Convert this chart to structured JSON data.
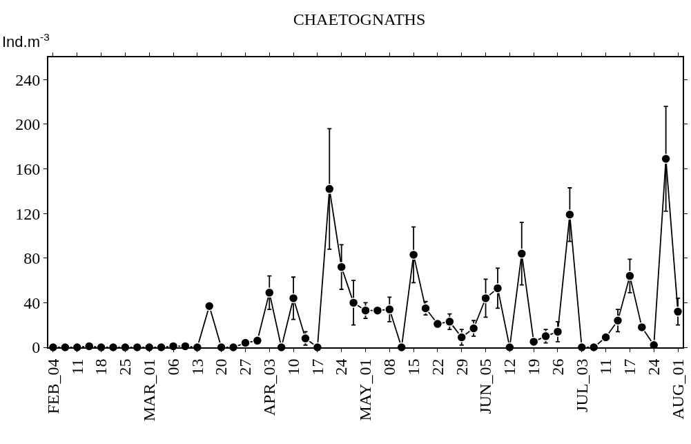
{
  "chart_data": {
    "type": "line",
    "title": "CHAETOGNATHS",
    "ylabel": "Ind.m$^{-3}$",
    "categories": [
      "FEB_04",
      null,
      "11",
      null,
      "18",
      null,
      "25",
      null,
      "MAR_01",
      null,
      "06",
      null,
      "13",
      null,
      "20",
      null,
      "27",
      null,
      "APR_03",
      null,
      "10",
      null,
      "17",
      null,
      "24",
      null,
      "MAY_01",
      null,
      "08",
      null,
      "15",
      null,
      "22",
      null,
      "29",
      null,
      "JUN_05",
      null,
      "12",
      null,
      "19",
      null,
      "26",
      null,
      "JUL_03",
      null,
      "11",
      null,
      "17",
      null,
      "24",
      null,
      "AUG_01"
    ],
    "series": [
      {
        "color": "#000000",
        "values": [
          0,
          0,
          0,
          1,
          0,
          0,
          0,
          0,
          0,
          0,
          1,
          1,
          0,
          37,
          0,
          0,
          4,
          6,
          49,
          0,
          44,
          8,
          0,
          142,
          72,
          40,
          33,
          33,
          34,
          0,
          83,
          35,
          21,
          23,
          9,
          17,
          44,
          53,
          0,
          84,
          5,
          10,
          14,
          119,
          0,
          0,
          9,
          24,
          64,
          18,
          2,
          169,
          32
        ],
        "errors": [
          null,
          null,
          null,
          null,
          null,
          null,
          null,
          null,
          null,
          null,
          null,
          null,
          null,
          null,
          null,
          null,
          null,
          null,
          15,
          null,
          19,
          6,
          null,
          54,
          20,
          20,
          7,
          null,
          11,
          null,
          25,
          6,
          null,
          7,
          7,
          7,
          17,
          18,
          null,
          28,
          null,
          6,
          9,
          24,
          null,
          null,
          null,
          10,
          15,
          null,
          null,
          47,
          12
        ]
      }
    ],
    "ylim": [
      0,
      260
    ],
    "yticks": [
      0,
      40,
      80,
      120,
      160,
      200,
      240
    ],
    "grid": false,
    "marker": "circle",
    "line_style": "solid"
  }
}
